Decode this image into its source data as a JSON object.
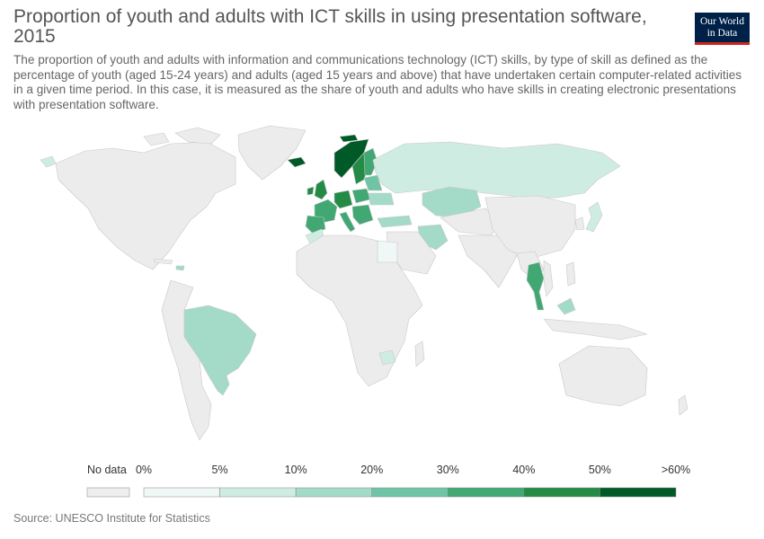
{
  "header": {
    "title": "Proportion of youth and adults with ICT skills in using presentation software, 2015",
    "subtitle": "The proportion of youth and adults with information and communications technology (ICT) skills, by type of skill as defined as the percentage of youth (aged 15-24 years) and adults (aged 15 years and above) that have undertaken certain computer-related activities in a given time period. In this case, it is measured as the share of youth and adults who have skills in creating electronic presentations with presentation software.",
    "logo_line1": "Our World",
    "logo_line2": "in Data"
  },
  "legend": {
    "no_data_label": "No data",
    "no_data_color": "#eeeeee",
    "ticks": [
      "0%",
      "5%",
      "10%",
      "20%",
      "30%",
      "40%",
      "50%",
      ">60%"
    ],
    "bins": [
      {
        "color": "#eff8f6"
      },
      {
        "color": "#cfece3"
      },
      {
        "color": "#a3dac8"
      },
      {
        "color": "#6fc4a5"
      },
      {
        "color": "#41a874"
      },
      {
        "color": "#238b45"
      },
      {
        "color": "#005a27"
      }
    ]
  },
  "map": {
    "no_data_color": "#ececec",
    "border_color": "#c8c8c8"
  },
  "footer": {
    "source": "Source: UNESCO Institute for Statistics"
  }
}
